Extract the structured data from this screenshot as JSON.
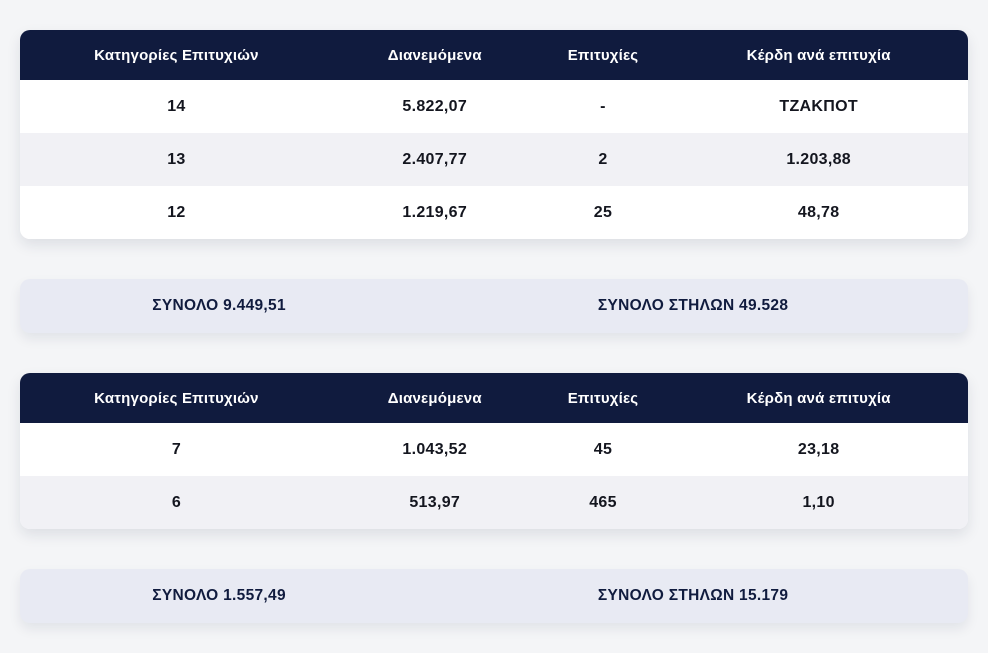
{
  "colors": {
    "page_background": "#f4f5f7",
    "table_header_background": "#101b3e",
    "table_header_text": "#ffffff",
    "row_background": "#ffffff",
    "row_alt_background": "#f1f1f5",
    "summary_background": "#e8eaf3",
    "summary_text": "#101b3e",
    "cell_text": "#14161f"
  },
  "tables": [
    {
      "headers": [
        "Κατηγορίες Επιτυχιών",
        "Διανεμόμενα",
        "Επιτυχίες",
        "Κέρδη ανά επιτυχία"
      ],
      "rows": [
        [
          "14",
          "5.822,07",
          "-",
          "ΤΖΑΚΠΟΤ"
        ],
        [
          "13",
          "2.407,77",
          "2",
          "1.203,88"
        ],
        [
          "12",
          "1.219,67",
          "25",
          "48,78"
        ]
      ],
      "summary": {
        "total": "ΣΥΝΟΛΟ 9.449,51",
        "columns_total": "ΣΥΝΟΛΟ ΣΤΗΛΩΝ 49.528"
      }
    },
    {
      "headers": [
        "Κατηγορίες Επιτυχιών",
        "Διανεμόμενα",
        "Επιτυχίες",
        "Κέρδη ανά επιτυχία"
      ],
      "rows": [
        [
          "7",
          "1.043,52",
          "45",
          "23,18"
        ],
        [
          "6",
          "513,97",
          "465",
          "1,10"
        ]
      ],
      "summary": {
        "total": "ΣΥΝΟΛΟ 1.557,49",
        "columns_total": "ΣΥΝΟΛΟ ΣΤΗΛΩΝ 15.179"
      }
    }
  ]
}
